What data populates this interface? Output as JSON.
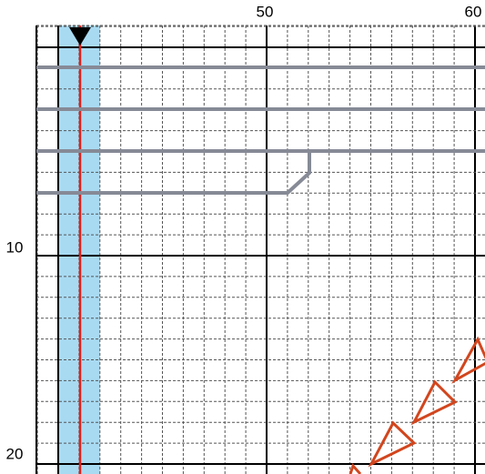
{
  "ruler": {
    "column_labels": [
      "50",
      "60"
    ],
    "row_labels": [
      "10",
      "20"
    ]
  }
}
